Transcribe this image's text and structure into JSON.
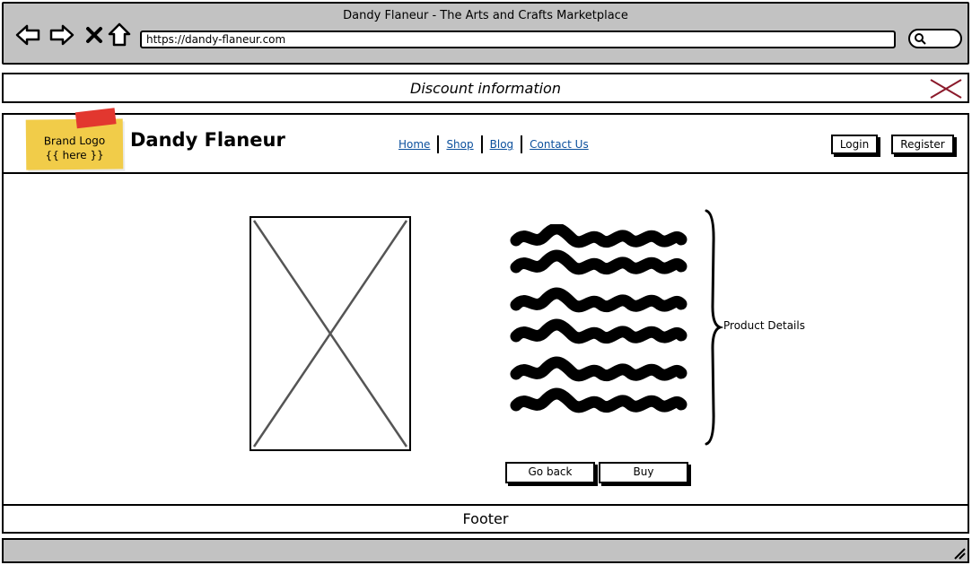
{
  "window": {
    "title": "Dandy Flaneur - The Arts and Crafts Marketplace"
  },
  "toolbar": {
    "back_icon": "back-arrow-icon",
    "forward_icon": "forward-arrow-icon",
    "stop_icon": "close-icon",
    "home_icon": "home-icon",
    "url": "https://dandy-flaneur.com",
    "search_icon": "search-icon"
  },
  "banner": {
    "text": "Discount information",
    "close_color": "#8b1a2b"
  },
  "header": {
    "logo_text": "Brand Logo\n{{ here }}",
    "logo_color": "#f1cc49",
    "tape_color": "#e2372f",
    "brand_name": "Dandy Flaneur",
    "nav": [
      "Home",
      "Shop",
      "Blog",
      "Contact Us"
    ],
    "link_color": "#0b4f9c",
    "login": "Login",
    "register": "Register"
  },
  "product": {
    "image_icon": "image-placeholder-icon",
    "details_label": "Product Details",
    "go_back": "Go back",
    "buy": "Buy"
  },
  "footer": {
    "text": "Footer"
  }
}
